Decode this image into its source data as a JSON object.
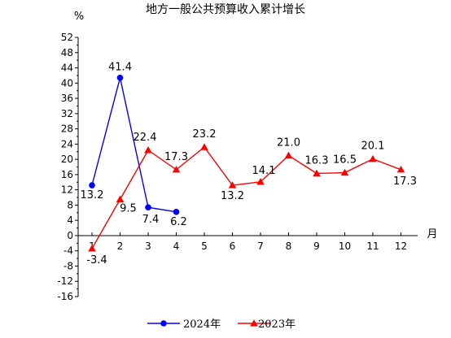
{
  "chart_data": {
    "type": "line",
    "title": "地方一般公共预算收入累计增长",
    "xlabel": "月",
    "ylabel": "%",
    "x": [
      1,
      2,
      3,
      4,
      5,
      6,
      7,
      8,
      9,
      10,
      11,
      12
    ],
    "xticks": [
      "1",
      "2",
      "3",
      "4",
      "5",
      "6",
      "7",
      "8",
      "9",
      "10",
      "11",
      "12"
    ],
    "ylim": [
      -16,
      52
    ],
    "yticks": [
      "-16",
      "-12",
      "-8",
      "-4",
      "0",
      "4",
      "8",
      "12",
      "16",
      "20",
      "24",
      "28",
      "32",
      "36",
      "40",
      "44",
      "48",
      "52"
    ],
    "grid": false,
    "legend_position": "bottom",
    "series": [
      {
        "name": "2024年",
        "color": "#0000ff",
        "marker": "circle",
        "x": [
          1,
          2,
          3,
          4
        ],
        "values": [
          13.2,
          41.4,
          7.4,
          6.2
        ],
        "labels": [
          "13.2",
          "41.4",
          "7.4",
          "6.2"
        ]
      },
      {
        "name": "2023年",
        "color": "#ff0000",
        "marker": "triangle",
        "x": [
          1,
          2,
          3,
          4,
          5,
          6,
          7,
          8,
          9,
          10,
          11,
          12
        ],
        "values": [
          -3.4,
          9.5,
          22.4,
          17.3,
          23.2,
          13.2,
          14.1,
          21.0,
          16.3,
          16.5,
          20.1,
          17.3
        ],
        "labels": [
          "-3.4",
          "9.5",
          "22.4",
          "17.3",
          "23.2",
          "13.2",
          "14.1",
          "21.0",
          "16.3",
          "16.5",
          "20.1",
          "17.3"
        ]
      }
    ]
  }
}
